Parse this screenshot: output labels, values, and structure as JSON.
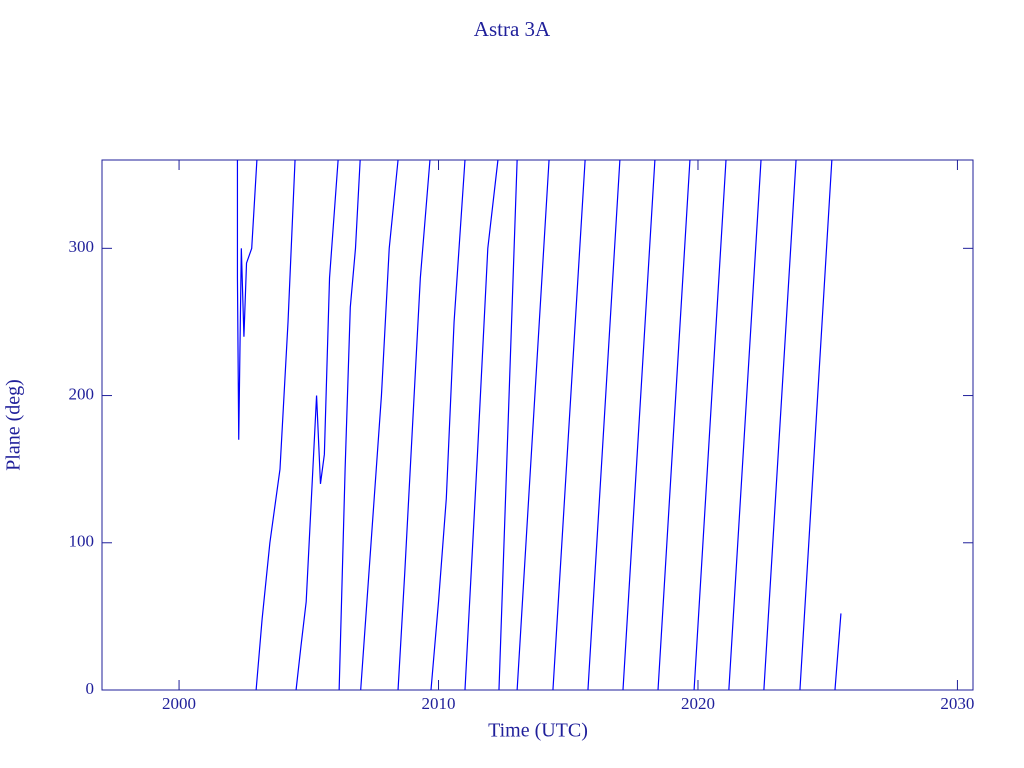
{
  "chart_data": {
    "type": "line",
    "title": "Astra 3A",
    "x_label": "Time (UTC)",
    "y_label": "Plane (deg)",
    "xlim": [
      1997.03,
      2030.6
    ],
    "ylim": [
      0,
      360
    ],
    "xticks": [
      2000,
      2010,
      2020,
      2030
    ],
    "yticks": [
      0,
      100,
      200,
      300
    ],
    "series": [
      {
        "color": "#0000ff",
        "x": [
          2002.25,
          2002.25,
          2002.3,
          2002.4,
          2002.5,
          2002.6,
          2002.8,
          2003.0,
          2003.0,
          2002.97,
          2003.2,
          2003.5,
          2003.89,
          2004.2,
          2004.47,
          2004.47,
          2004.51,
          2004.7,
          2004.9,
          2005.1,
          2005.3,
          2005.45,
          2005.6,
          2005.8,
          2006.13,
          2006.13,
          2006.17,
          2006.4,
          2006.6,
          2006.8,
          2006.98,
          2006.98,
          2007.0,
          2007.4,
          2007.8,
          2008.1,
          2008.44,
          2008.44,
          2008.44,
          2008.7,
          2009.0,
          2009.3,
          2009.67,
          2009.67,
          2009.71,
          2010.0,
          2010.3,
          2010.6,
          2011.02,
          2011.02,
          2011.02,
          2011.5,
          2011.9,
          2012.29,
          2012.29,
          2012.33,
          2013.03,
          2013.03,
          2013.03,
          2014.26,
          2014.26,
          2014.41,
          2015.65,
          2015.65,
          2015.76,
          2016.99,
          2016.99,
          2017.11,
          2018.34,
          2018.34,
          2018.46,
          2019.69,
          2019.69,
          2019.85,
          2021.08,
          2021.08,
          2021.19,
          2022.43,
          2022.43,
          2022.54,
          2023.78,
          2023.78,
          2023.93,
          2025.16,
          2025.16,
          2025.28,
          2025.51
        ],
        "values": [
          360,
          280,
          170,
          300,
          240,
          290,
          300,
          360,
          null,
          0,
          48,
          100,
          150,
          250,
          360,
          null,
          0,
          30,
          60,
          130,
          200,
          140,
          160,
          280,
          360,
          null,
          0,
          150,
          260,
          300,
          360,
          null,
          0,
          100,
          200,
          300,
          360,
          null,
          0,
          80,
          180,
          280,
          360,
          null,
          0,
          60,
          130,
          250,
          360,
          null,
          0,
          160,
          300,
          360,
          null,
          0,
          360,
          null,
          0,
          360,
          null,
          0,
          360,
          null,
          0,
          360,
          null,
          0,
          360,
          null,
          0,
          360,
          null,
          0,
          360,
          null,
          0,
          360,
          null,
          0,
          360,
          null,
          0,
          360,
          null,
          0,
          52
        ]
      }
    ]
  }
}
